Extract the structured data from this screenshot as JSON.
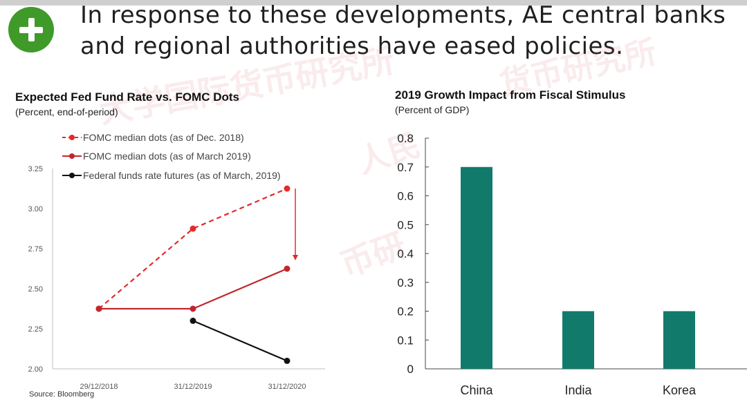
{
  "slide": {
    "headline": "In response to these developments, AE central banks and regional authorities have eased policies.",
    "plus_icon": "plus-circle-icon",
    "accent_color": "#3f9a2a",
    "footer": "Source: Bloomberg"
  },
  "watermark": {
    "text_1": "大学国际货币研究所",
    "text_2": "货币研究所",
    "text_3": "人民",
    "text_4": "币研",
    "color": "#d9464f"
  },
  "chart_data": [
    {
      "type": "line",
      "title": "Expected Fed Fund Rate vs. FOMC Dots",
      "subtitle": "(Percent, end-of-period)",
      "xlabel": "",
      "ylabel": "",
      "categories": [
        "29/12/2018",
        "31/12/2019",
        "31/12/2020"
      ],
      "ylim": [
        2.0,
        3.25
      ],
      "yticks": [
        "3.25",
        "3.00",
        "2.75",
        "2.50",
        "2.25",
        "2.00"
      ],
      "yticks_values": [
        3.25,
        3.0,
        2.75,
        2.5,
        2.25,
        2.0
      ],
      "grid": false,
      "legend_position": "top-left",
      "series": [
        {
          "name": "FOMC median dots (as of Dec. 2018)",
          "values": [
            2.375,
            2.875,
            3.125
          ],
          "color": "#e32b2b",
          "style": "dashed",
          "marker": "circle"
        },
        {
          "name": "FOMC median dots (as of March 2019)",
          "values": [
            2.375,
            2.375,
            2.625
          ],
          "color": "#c0272d",
          "style": "solid",
          "marker": "circle"
        },
        {
          "name": "Federal funds rate futures (as of March, 2019)",
          "values": [
            null,
            2.3,
            2.05
          ],
          "color": "#111111",
          "style": "solid",
          "marker": "circle"
        }
      ],
      "annotation": {
        "type": "arrow",
        "from": 3.125,
        "to": 2.625,
        "at_category": "31/12/2020"
      }
    },
    {
      "type": "bar",
      "title": "2019 Growth Impact from Fiscal Stimulus",
      "subtitle": "(Percent of GDP)",
      "xlabel": "",
      "ylabel": "",
      "categories": [
        "China",
        "India",
        "Korea"
      ],
      "values": [
        0.7,
        0.2,
        0.2
      ],
      "ylim": [
        0,
        0.8
      ],
      "yticks": [
        "0.8",
        "0.7",
        "0.6",
        "0.5",
        "0.4",
        "0.3",
        "0.2",
        "0.1",
        "0"
      ],
      "yticks_values": [
        0.8,
        0.7,
        0.6,
        0.5,
        0.4,
        0.3,
        0.2,
        0.1,
        0
      ],
      "grid": false,
      "bar_color": "#127a6b"
    }
  ]
}
